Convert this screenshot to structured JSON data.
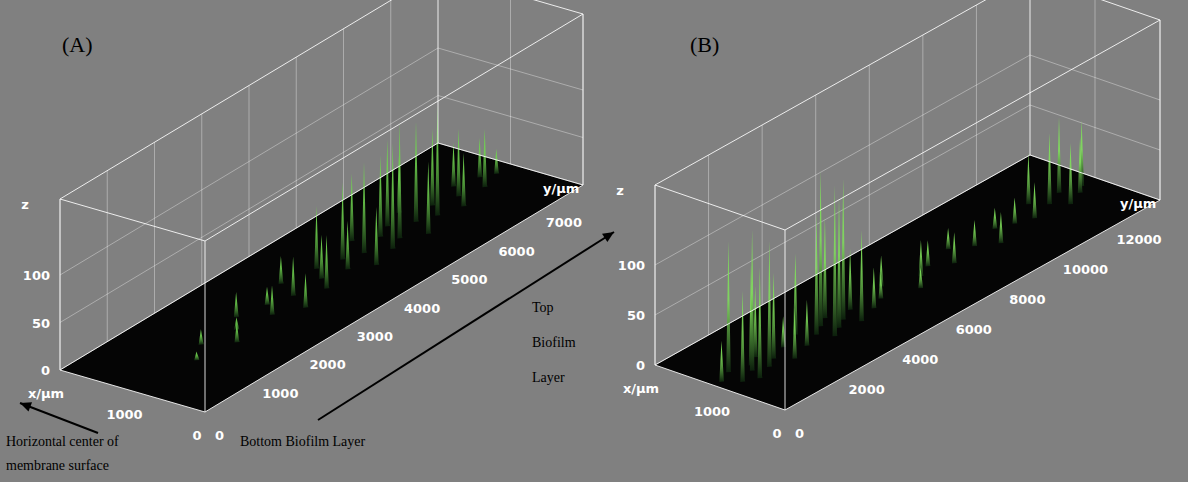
{
  "chart_data": [
    {
      "type": "3d_surface",
      "title": "(A)",
      "x_label": "x/µm",
      "y_label": "y/µm",
      "z_label": "z",
      "color": "#6fd34f",
      "xlim": [
        0,
        2000
      ],
      "xticks": [
        0,
        1000
      ],
      "ylim": [
        0,
        8000
      ],
      "yticks": [
        0,
        1000,
        2000,
        3000,
        4000,
        5000,
        6000,
        7000
      ],
      "zlim": [
        0,
        180
      ],
      "zticks": [
        0,
        50,
        100
      ],
      "x": [
        900,
        1100,
        800,
        1000,
        1200,
        900,
        1100,
        700,
        1000,
        1300,
        800,
        1000,
        1200,
        900,
        1100,
        700,
        1000,
        1300,
        800,
        1100,
        900,
        1200,
        700,
        1000,
        1300,
        900,
        1100,
        800,
        1000,
        1200,
        900,
        1100,
        1000
      ],
      "y": [
        1200,
        1600,
        1900,
        2200,
        2500,
        2800,
        3000,
        3200,
        3400,
        3600,
        3800,
        4000,
        4200,
        4400,
        4600,
        4700,
        4900,
        5100,
        5200,
        5400,
        5500,
        5700,
        5800,
        6000,
        6100,
        6300,
        6500,
        6700,
        6900,
        7100,
        7300,
        7500,
        7700
      ],
      "values": [
        8,
        15,
        20,
        12,
        25,
        30,
        18,
        35,
        40,
        28,
        55,
        45,
        65,
        50,
        80,
        60,
        95,
        70,
        110,
        85,
        120,
        90,
        75,
        105,
        60,
        115,
        80,
        55,
        70,
        45,
        60,
        40,
        25
      ],
      "annotations": [
        "Horizontal center of membrane surface",
        "Bottom Biofilm Layer",
        "Top Biofilm Layer"
      ]
    },
    {
      "type": "3d_surface",
      "title": "(B)",
      "x_label": "x/µm",
      "y_label": "y/µm",
      "z_label": "z",
      "color": "#7fe05a",
      "xlim": [
        0,
        2000
      ],
      "xticks": [
        0,
        1000
      ],
      "ylim": [
        0,
        14000
      ],
      "yticks": [
        0,
        2000,
        4000,
        6000,
        8000,
        10000,
        12000
      ],
      "zlim": [
        0,
        180
      ],
      "zticks": [
        0,
        50,
        100
      ],
      "x": [
        1100,
        900,
        1200,
        800,
        1000,
        1100,
        900,
        1200,
        1000,
        800,
        1100,
        900,
        1200,
        1000,
        800,
        1100,
        900,
        1200,
        1000,
        800,
        1100,
        900,
        1000,
        1200,
        800,
        1000,
        1100,
        900,
        1200,
        1000,
        800,
        1100,
        1000,
        900,
        1200,
        1000,
        800,
        1100,
        900,
        1000
      ],
      "y": [
        300,
        600,
        800,
        1000,
        1200,
        1400,
        1600,
        1800,
        2000,
        2300,
        2600,
        3000,
        3300,
        3600,
        3800,
        4000,
        4200,
        4400,
        4600,
        4800,
        5100,
        5500,
        6000,
        6500,
        7000,
        7500,
        8000,
        8500,
        9000,
        9500,
        10000,
        10500,
        11000,
        11500,
        12000,
        12300,
        12600,
        12900,
        13200,
        13500
      ],
      "values": [
        40,
        90,
        130,
        110,
        140,
        100,
        125,
        70,
        85,
        50,
        30,
        45,
        80,
        120,
        150,
        155,
        130,
        100,
        140,
        90,
        60,
        40,
        25,
        30,
        20,
        35,
        25,
        30,
        20,
        25,
        30,
        20,
        25,
        35,
        50,
        70,
        60,
        75,
        55,
        65
      ]
    }
  ]
}
